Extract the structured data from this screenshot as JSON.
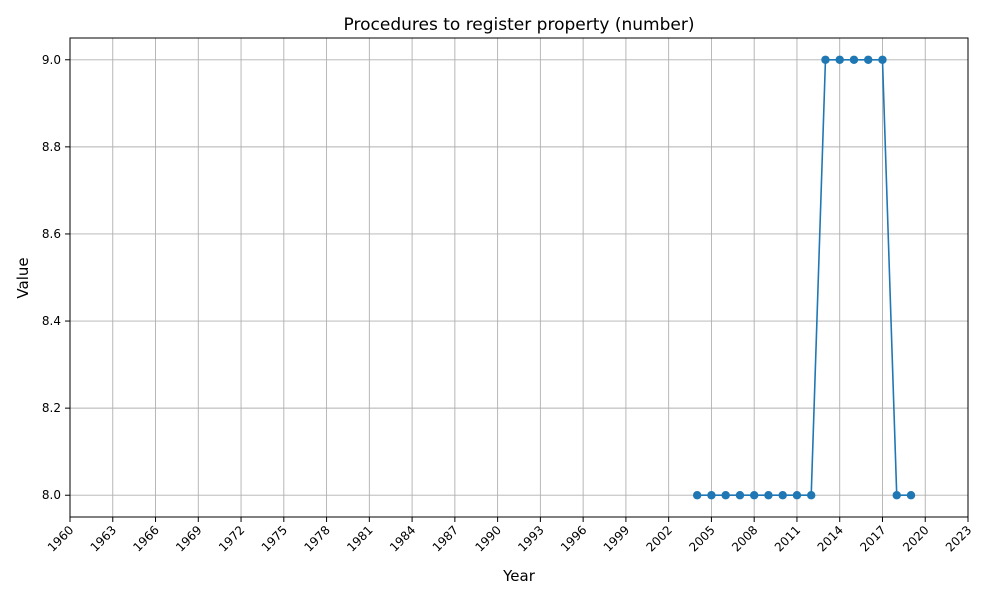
{
  "chart_data": {
    "type": "line",
    "title": "Procedures to register property (number)",
    "xlabel": "Year",
    "ylabel": "Value",
    "xlim": [
      1960,
      2023
    ],
    "ylim": [
      7.95,
      9.05
    ],
    "x_ticks": [
      1960,
      1963,
      1966,
      1969,
      1972,
      1975,
      1978,
      1981,
      1984,
      1987,
      1990,
      1993,
      1996,
      1999,
      2002,
      2005,
      2008,
      2011,
      2014,
      2017,
      2020,
      2023
    ],
    "y_ticks": [
      8.0,
      8.2,
      8.4,
      8.6,
      8.8,
      9.0
    ],
    "grid": true,
    "legend": "none",
    "color": "#1f77b4",
    "series": [
      {
        "x": [
          2004,
          2005,
          2006,
          2007,
          2008,
          2009,
          2010,
          2011,
          2012,
          2013,
          2014,
          2015,
          2016,
          2017,
          2018,
          2019
        ],
        "values": [
          8,
          8,
          8,
          8,
          8,
          8,
          8,
          8,
          8,
          9,
          9,
          9,
          9,
          9,
          8,
          8
        ]
      }
    ]
  }
}
